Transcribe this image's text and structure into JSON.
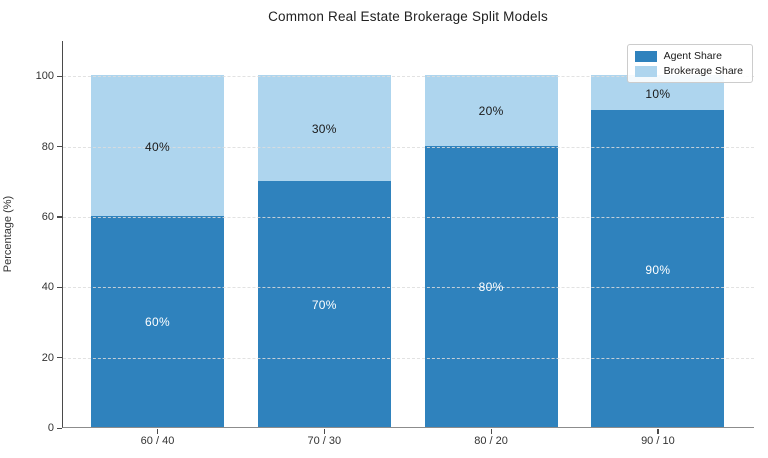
{
  "title": "Common Real Estate Brokerage Split Models",
  "y_axis": {
    "label": "Percentage (%)"
  },
  "legend": {
    "items": [
      {
        "label": "Agent Share",
        "color": "#2f82bd"
      },
      {
        "label": "Brokerage Share",
        "color": "#aed5ee"
      }
    ]
  },
  "chart_data": {
    "type": "bar",
    "stacked": true,
    "title": "Common Real Estate Brokerage Split Models",
    "xlabel": "",
    "ylabel": "Percentage (%)",
    "categories": [
      "60 / 40",
      "70 / 30",
      "80 / 20",
      "90 / 10"
    ],
    "series": [
      {
        "name": "Agent Share",
        "color": "#2f82bd",
        "values": [
          60,
          70,
          80,
          90
        ],
        "data_labels": [
          "60%",
          "70%",
          "80%",
          "90%"
        ],
        "label_color": "#ffffff"
      },
      {
        "name": "Brokerage Share",
        "color": "#aed5ee",
        "values": [
          40,
          30,
          20,
          10
        ],
        "data_labels": [
          "40%",
          "30%",
          "20%",
          "10%"
        ],
        "label_color": "#1a1a1a"
      }
    ],
    "ylim": [
      0,
      110
    ],
    "yticks": [
      0,
      20,
      40,
      60,
      80,
      100
    ],
    "grid": true,
    "grid_style": "dashed",
    "legend_position": "upper right"
  }
}
